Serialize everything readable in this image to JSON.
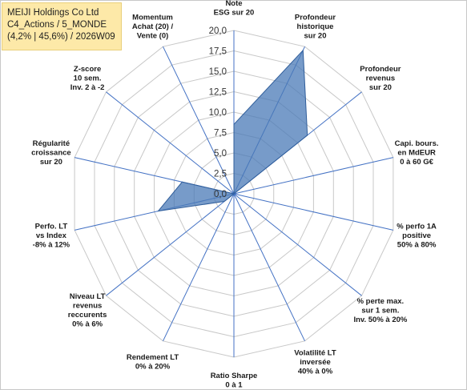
{
  "title": {
    "line1": "MEIJI Holdings Co Ltd",
    "line2": "C4_Actions / 5_MONDE",
    "line3": "(4,2% | 45,6%) / 2026W09"
  },
  "chart_data": {
    "type": "radar",
    "rmax": 20,
    "ticks": [
      "0,0",
      "2,5",
      "5,0",
      "7,5",
      "10,0",
      "12,5",
      "15,0",
      "17,5",
      "20,0"
    ],
    "tick_values": [
      0,
      2.5,
      5,
      7.5,
      10,
      12.5,
      15,
      17.5,
      20
    ],
    "axes": [
      {
        "label": [
          "Note",
          "ESG sur 20"
        ]
      },
      {
        "label": [
          "Profondeur",
          "historique",
          "sur 20"
        ]
      },
      {
        "label": [
          "Profondeur",
          "revenus",
          "sur 20"
        ]
      },
      {
        "label": [
          "Capi. bours.",
          "en MdEUR",
          "0 à 60 G€"
        ]
      },
      {
        "label": [
          "% perfo 1A",
          "positive",
          "50% à 80%"
        ]
      },
      {
        "label": [
          "% perte max.",
          "sur 1 sem.",
          "Inv. 50% à 20%"
        ]
      },
      {
        "label": [
          "Volatilité LT",
          "inversée",
          "40% à 0%"
        ]
      },
      {
        "label": [
          "Ratio Sharpe",
          "0 à 1"
        ]
      },
      {
        "label": [
          "Rendement LT",
          "0% à 20%"
        ]
      },
      {
        "label": [
          "Niveau LT",
          "revenus",
          "reccurents",
          "0% à 6%"
        ]
      },
      {
        "label": [
          "Perfo. LT",
          "vs Index",
          "-8% à 12%"
        ]
      },
      {
        "label": [
          "Régularité",
          "croissance",
          "sur 20"
        ]
      },
      {
        "label": [
          "Z-score",
          "10 sem.",
          "Inv. 2 à -2"
        ]
      },
      {
        "label": [
          "Momentum",
          "Achat (20) /",
          "Vente (0)"
        ]
      }
    ],
    "series": [
      {
        "values": [
          8.5,
          19.5,
          11.5,
          0,
          0,
          0,
          0,
          0,
          0,
          1.5,
          9.5,
          6.5,
          0,
          0
        ]
      }
    ],
    "colors": {
      "fill": "#4a79b7",
      "fill_opacity": 0.75,
      "stroke": "#2f5d9a",
      "grid": "#c8c8c8",
      "spoke": "#4472c4"
    }
  }
}
